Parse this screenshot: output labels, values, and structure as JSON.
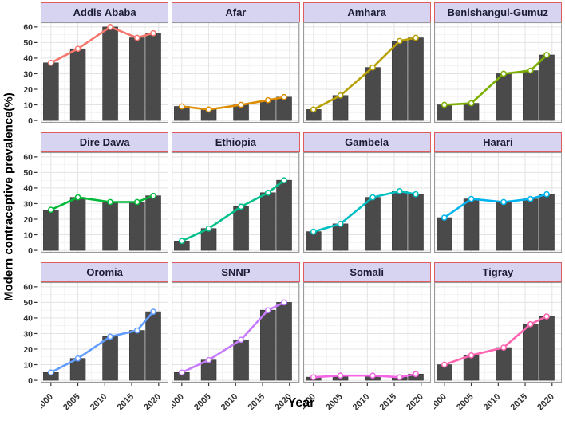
{
  "ylabel": "Modern contraceptive prevalence(%)",
  "xlabel": "Year",
  "styles": {
    "strip_bg": "#D6D4F0",
    "strip_border": "#E05C5C",
    "strip_text": "#1C1C35",
    "bar_fill": "#4A4A4A",
    "bar_stroke": "#333333",
    "grid_major": "#E3E3E3",
    "grid_minor": "#F1F1F1",
    "panel_border": "#999999",
    "panel_bg": "#FFFFFF",
    "tick_text": "#333333",
    "point_fill": "#FFFFFF"
  },
  "chart_data": {
    "type": "bar",
    "overlay": "line",
    "x_survey_years": [
      2000,
      2005,
      2011,
      2016,
      2019
    ],
    "x_ticks": [
      2000,
      2005,
      2010,
      2015,
      2020
    ],
    "x_tick_labels": [
      "2000",
      "2005",
      "2010",
      "2015",
      "2020"
    ],
    "yticks": [
      0,
      10,
      20,
      30,
      40,
      50,
      60
    ],
    "ylim": [
      0,
      60
    ],
    "xlabel": "Year",
    "ylabel": "Modern contraceptive prevalence(%)",
    "grid": "on",
    "legend": "none",
    "facets": [
      {
        "label": "Addis Ababa",
        "color": "#F8766D",
        "values": [
          37,
          46,
          60,
          53,
          56
        ]
      },
      {
        "label": "Afar",
        "color": "#DE8C00",
        "values": [
          9,
          7,
          10,
          13,
          15
        ]
      },
      {
        "label": "Amhara",
        "color": "#B79F00",
        "values": [
          7,
          16,
          34,
          51,
          53
        ]
      },
      {
        "label": "Benishangul-Gumuz",
        "color": "#7CAE00",
        "values": [
          10,
          11,
          30,
          32,
          42
        ]
      },
      {
        "label": "Dire Dawa",
        "color": "#00BA38",
        "values": [
          26,
          34,
          31,
          31,
          35
        ]
      },
      {
        "label": "Ethiopia",
        "color": "#00C08B",
        "values": [
          6,
          14,
          28,
          37,
          45
        ]
      },
      {
        "label": "Gambela",
        "color": "#00BFC4",
        "values": [
          12,
          17,
          34,
          38,
          36
        ]
      },
      {
        "label": "Harari",
        "color": "#00B4F0",
        "values": [
          21,
          33,
          31,
          33,
          36
        ]
      },
      {
        "label": "Oromia",
        "color": "#619CFF",
        "values": [
          5,
          14,
          28,
          32,
          44
        ]
      },
      {
        "label": "SNNP",
        "color": "#C77CFF",
        "values": [
          5,
          13,
          26,
          45,
          50
        ]
      },
      {
        "label": "Somali",
        "color": "#F564E3",
        "values": [
          2,
          3,
          3,
          2,
          4
        ]
      },
      {
        "label": "Tigray",
        "color": "#FF64B0",
        "values": [
          10,
          16,
          21,
          36,
          41
        ]
      }
    ]
  }
}
